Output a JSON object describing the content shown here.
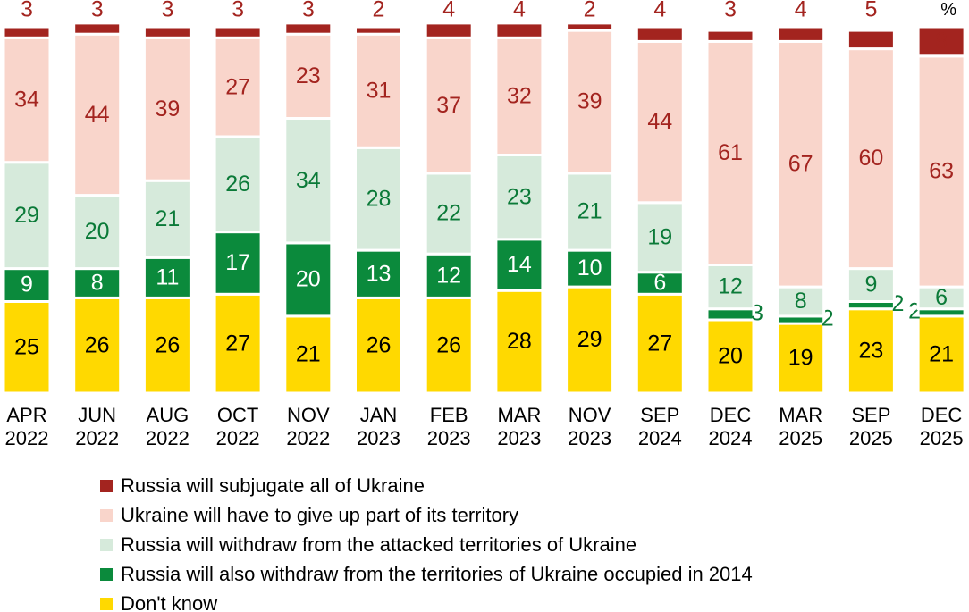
{
  "chart_data": {
    "type": "stacked_bar",
    "unit": "%",
    "categories": [
      "APR 2022",
      "JUN 2022",
      "AUG 2022",
      "OCT 2022",
      "NOV 2022",
      "JAN 2023",
      "FEB 2023",
      "MAR 2023",
      "NOV 2023",
      "SEP 2024",
      "DEC 2024",
      "MAR 2025",
      "SEP 2025",
      "DEC 2025"
    ],
    "ylim": [
      0,
      100
    ],
    "series": [
      {
        "name": "Russia will subjugate all of Ukraine",
        "color": "#a3241f",
        "values": [
          3,
          3,
          3,
          3,
          3,
          2,
          4,
          4,
          2,
          4,
          3,
          4,
          5,
          8
        ]
      },
      {
        "name": "Ukraine will have to give up part of its territory",
        "color": "#f9d5cb",
        "values": [
          34,
          44,
          39,
          27,
          23,
          31,
          37,
          32,
          39,
          44,
          61,
          67,
          60,
          63
        ]
      },
      {
        "name": "Russia will withdraw from the attacked territories of Ukraine",
        "color": "#d6eadb",
        "values": [
          29,
          20,
          21,
          26,
          34,
          28,
          22,
          23,
          21,
          19,
          12,
          8,
          9,
          6
        ]
      },
      {
        "name": "Russia will also withdraw from the territories of Ukraine occupied in 2014",
        "color": "#0b8a3c",
        "values": [
          9,
          8,
          11,
          17,
          20,
          13,
          12,
          14,
          10,
          6,
          3,
          2,
          2,
          2
        ]
      },
      {
        "name": "Don't know",
        "color": "#ffd900",
        "values": [
          25,
          26,
          26,
          27,
          21,
          26,
          26,
          28,
          29,
          27,
          20,
          19,
          23,
          21
        ]
      }
    ]
  }
}
